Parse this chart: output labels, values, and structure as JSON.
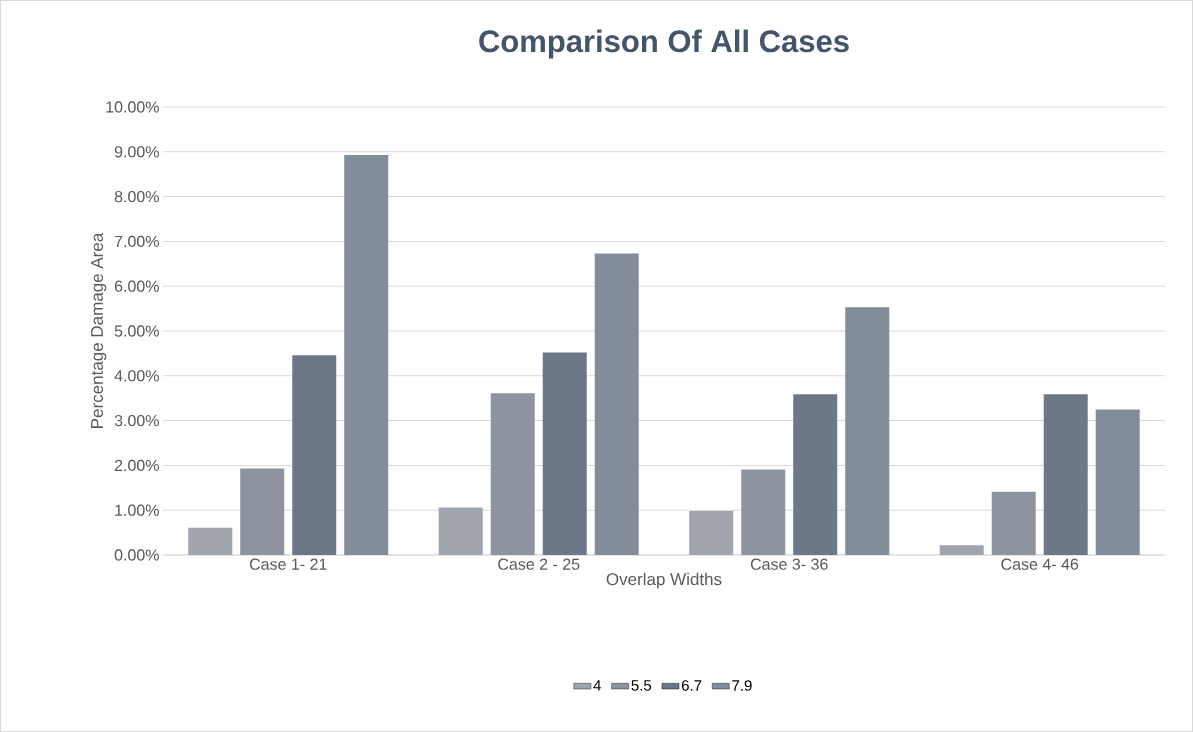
{
  "chart_data": {
    "type": "bar",
    "title": "Comparison Of All Cases",
    "xlabel": "Overlap Widths",
    "ylabel": "Percentage Damage Area",
    "categories": [
      "Case 1- 21",
      "Case 2 - 25",
      "Case 3- 36",
      "Case 4- 46"
    ],
    "series": [
      {
        "name": "4",
        "color": "#a0a5ad",
        "values": [
          0.61,
          1.06,
          0.98,
          0.22
        ]
      },
      {
        "name": "5.5",
        "color": "#8d949f",
        "values": [
          1.93,
          3.61,
          1.91,
          1.41
        ]
      },
      {
        "name": "6.7",
        "color": "#6c7788",
        "values": [
          4.46,
          4.52,
          3.59,
          3.59
        ]
      },
      {
        "name": "7.9",
        "color": "#838c99",
        "values": [
          8.93,
          6.73,
          5.53,
          3.25
        ]
      }
    ],
    "ylim": [
      0,
      10
    ],
    "yticks": [
      {
        "value": 0,
        "label": "0.00%"
      },
      {
        "value": 1,
        "label": "1.00%"
      },
      {
        "value": 2,
        "label": "2.00%"
      },
      {
        "value": 3,
        "label": "3.00%"
      },
      {
        "value": 4,
        "label": "4.00%"
      },
      {
        "value": 5,
        "label": "5.00%"
      },
      {
        "value": 6,
        "label": "6.00%"
      },
      {
        "value": 7,
        "label": "7.00%"
      },
      {
        "value": 8,
        "label": "8.00%"
      },
      {
        "value": 9,
        "label": "9.00%"
      },
      {
        "value": 10,
        "label": "10.00%"
      }
    ],
    "grid": "y",
    "legend": "bottom"
  }
}
